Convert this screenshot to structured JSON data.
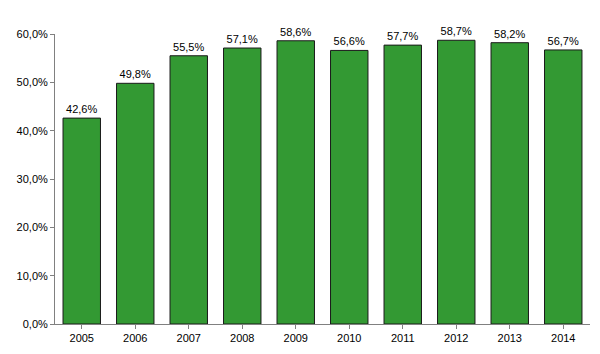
{
  "chart_data": {
    "type": "bar",
    "categories": [
      "2005",
      "2006",
      "2007",
      "2008",
      "2009",
      "2010",
      "2011",
      "2012",
      "2013",
      "2014"
    ],
    "values": [
      42.6,
      49.8,
      55.5,
      57.1,
      58.6,
      56.6,
      57.7,
      58.7,
      58.2,
      56.7
    ],
    "value_labels": [
      "42,6%",
      "49,8%",
      "55,5%",
      "57,1%",
      "58,6%",
      "56,6%",
      "57,7%",
      "58,7%",
      "58,2%",
      "56,7%"
    ],
    "color": "#339933",
    "ylim": [
      0,
      60
    ],
    "yticks": [
      {
        "value": 0,
        "label": "0,0%"
      },
      {
        "value": 10,
        "label": "10,0%"
      },
      {
        "value": 20,
        "label": "20,0%"
      },
      {
        "value": 30,
        "label": "30,0%"
      },
      {
        "value": 40,
        "label": "40,0%"
      },
      {
        "value": 50,
        "label": "50,0%"
      },
      {
        "value": 60,
        "label": "60,0%"
      }
    ],
    "grid": false,
    "data_labels": true
  }
}
